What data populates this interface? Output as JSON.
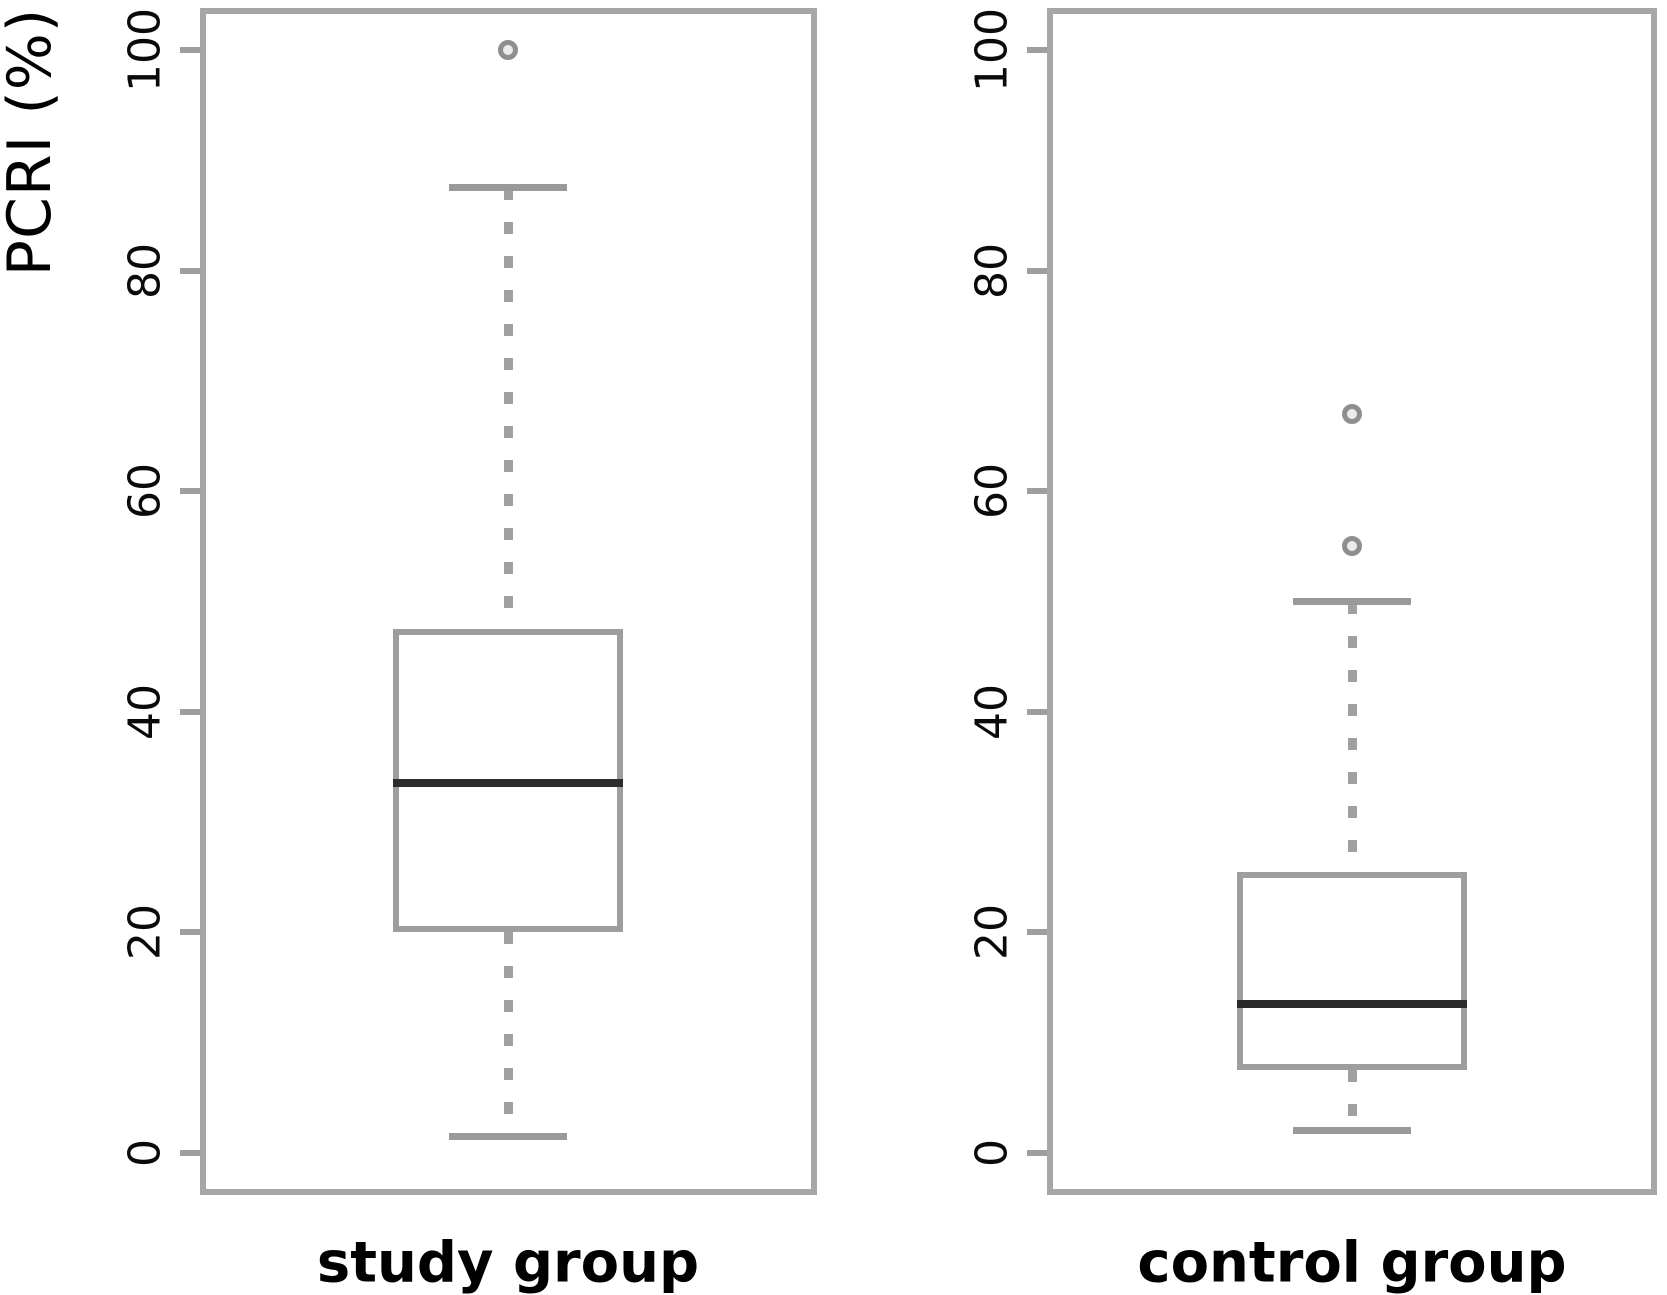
{
  "chart_data": {
    "type": "boxplot",
    "title": "",
    "ylabel": "PCRI (%)",
    "xlabel": "",
    "ylim": [
      0,
      100
    ],
    "yticks": [
      0,
      20,
      40,
      60,
      80,
      100
    ],
    "grid": false,
    "legend": false,
    "groups": [
      {
        "label": "study group",
        "whisker_low": 1.5,
        "q1": 20,
        "median": 33.5,
        "q3": 47.5,
        "whisker_high": 87.5,
        "outliers": [
          100
        ]
      },
      {
        "label": "control group",
        "whisker_low": 2,
        "q1": 7.5,
        "median": 13.5,
        "q3": 25.5,
        "whisker_high": 50,
        "outliers": [
          67,
          55
        ]
      }
    ],
    "colors": {
      "panel_border": "#a6a6a6",
      "box_border": "#9e9e9e",
      "median": "#2b2b2b",
      "whisker": "#a0a0a0",
      "cap": "#9a9a9a",
      "outlier_ring": "#8f8f8f",
      "outlier_fill": "#ececec",
      "text": "#000000",
      "background": "#ffffff"
    }
  }
}
